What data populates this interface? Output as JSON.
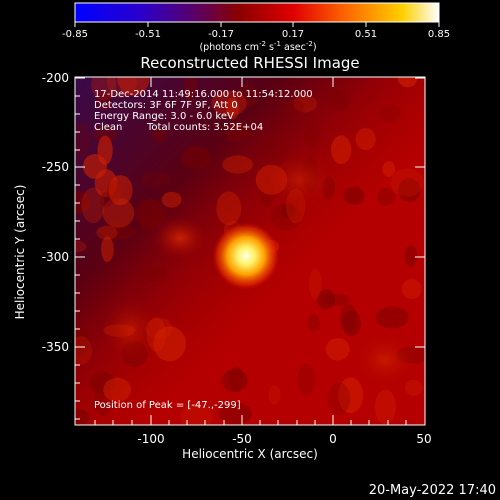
{
  "colorbar": {
    "ticks": [
      "-0.85",
      "-0.51",
      "-0.17",
      "0.17",
      "0.51",
      "0.85"
    ],
    "units_main": "(photons cm",
    "units_exp1": "-2",
    "units_mid1": " s",
    "units_exp2": "-1",
    "units_mid2": " asec",
    "units_exp3": "-2",
    "units_close": ")"
  },
  "title": "Reconstructed RHESSI Image",
  "info": {
    "time_range": "17-Dec-2014 11:49:16.000 to 11:54:12.000",
    "detectors": "Detectors: 3F 6F 7F 9F, Att 0",
    "energy_range": "Energy Range: 3.0 - 6.0 keV",
    "method": "Clean",
    "total_counts": "Total counts: 3.52E+04",
    "peak_position": "Position of Peak = [-47.,-299]"
  },
  "axes": {
    "xlabel": "Heliocentric X (arcsec)",
    "ylabel": "Heliocentric Y (arcsec)",
    "x_ticks": [
      "-100",
      "-50",
      "0",
      "50"
    ],
    "y_ticks": [
      "-200",
      "-250",
      "-300",
      "-350"
    ],
    "x_range": [
      -142,
      50
    ],
    "y_range": [
      -392,
      -198
    ]
  },
  "image_data": {
    "peak_x": -47,
    "peak_y": -299,
    "colormap": "RHESSI red-temperature"
  },
  "footer_timestamp": "20-May-2022 17:40"
}
